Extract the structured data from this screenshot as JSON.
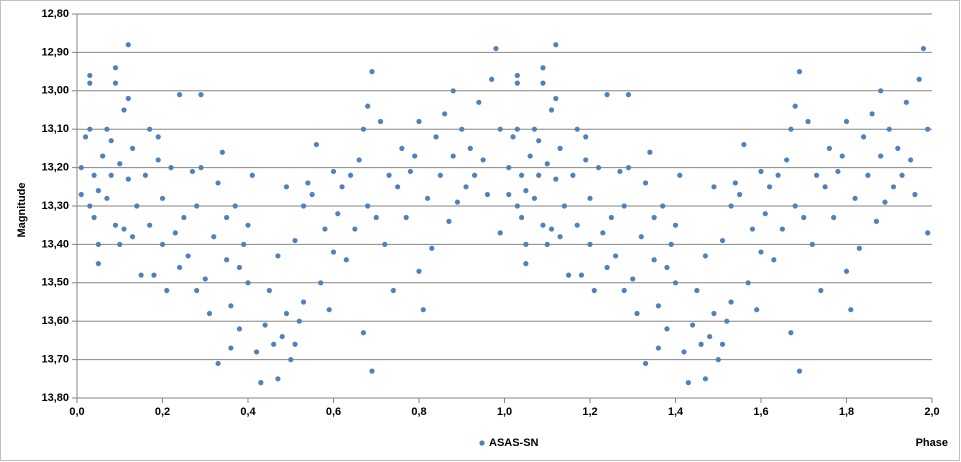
{
  "chart_data": {
    "type": "scatter",
    "xlabel": "Phase",
    "ylabel": "Magnitude",
    "x": [
      0.01,
      0.01,
      0.02,
      0.03,
      0.03,
      0.03,
      0.03,
      0.04,
      0.04,
      0.05,
      0.05,
      0.05,
      0.06,
      0.07,
      0.07,
      0.08,
      0.08,
      0.09,
      0.09,
      0.09,
      0.1,
      0.1,
      0.11,
      0.11,
      0.12,
      0.12,
      0.12,
      0.13,
      0.13,
      0.14,
      0.15,
      0.16,
      0.17,
      0.17,
      0.18,
      0.19,
      0.19,
      0.2,
      0.2,
      0.21,
      0.22,
      0.23,
      0.24,
      0.24,
      0.25,
      0.26,
      0.27,
      0.28,
      0.28,
      0.29,
      0.29,
      0.3,
      0.31,
      0.32,
      0.33,
      0.33,
      0.34,
      0.35,
      0.35,
      0.36,
      0.36,
      0.37,
      0.38,
      0.38,
      0.39,
      0.4,
      0.4,
      0.41,
      0.42,
      0.43,
      0.44,
      0.45,
      0.46,
      0.47,
      0.47,
      0.48,
      0.49,
      0.49,
      0.5,
      0.51,
      0.51,
      0.52,
      0.53,
      0.53,
      0.54,
      0.55,
      0.56,
      0.57,
      0.58,
      0.59,
      0.6,
      0.6,
      0.61,
      0.62,
      0.63,
      0.64,
      0.65,
      0.66,
      0.67,
      0.67,
      0.68,
      0.68,
      0.69,
      0.69,
      0.7,
      0.71,
      0.72,
      0.73,
      0.74,
      0.75,
      0.76,
      0.77,
      0.78,
      0.79,
      0.8,
      0.8,
      0.81,
      0.82,
      0.83,
      0.84,
      0.85,
      0.86,
      0.87,
      0.88,
      0.88,
      0.89,
      0.9,
      0.91,
      0.92,
      0.93,
      0.94,
      0.95,
      0.96,
      0.97,
      0.98,
      0.99,
      0.99,
      1.01,
      1.01,
      1.02,
      1.03,
      1.03,
      1.03,
      1.03,
      1.04,
      1.04,
      1.05,
      1.05,
      1.05,
      1.06,
      1.07,
      1.07,
      1.08,
      1.08,
      1.09,
      1.09,
      1.09,
      1.1,
      1.1,
      1.11,
      1.11,
      1.12,
      1.12,
      1.12,
      1.13,
      1.13,
      1.14,
      1.15,
      1.16,
      1.17,
      1.17,
      1.18,
      1.19,
      1.19,
      1.2,
      1.2,
      1.21,
      1.22,
      1.23,
      1.24,
      1.24,
      1.25,
      1.26,
      1.27,
      1.28,
      1.28,
      1.29,
      1.29,
      1.3,
      1.31,
      1.32,
      1.33,
      1.33,
      1.34,
      1.35,
      1.35,
      1.36,
      1.36,
      1.37,
      1.38,
      1.38,
      1.39,
      1.4,
      1.4,
      1.41,
      1.42,
      1.43,
      1.44,
      1.45,
      1.46,
      1.47,
      1.47,
      1.48,
      1.49,
      1.49,
      1.5,
      1.51,
      1.51,
      1.52,
      1.53,
      1.53,
      1.54,
      1.55,
      1.56,
      1.57,
      1.58,
      1.59,
      1.6,
      1.6,
      1.61,
      1.62,
      1.63,
      1.64,
      1.65,
      1.66,
      1.67,
      1.67,
      1.68,
      1.68,
      1.69,
      1.69,
      1.7,
      1.71,
      1.72,
      1.73,
      1.74,
      1.75,
      1.76,
      1.77,
      1.78,
      1.79,
      1.8,
      1.8,
      1.81,
      1.82,
      1.83,
      1.84,
      1.85,
      1.86,
      1.87,
      1.88,
      1.88,
      1.89,
      1.9,
      1.91,
      1.92,
      1.93,
      1.94,
      1.95,
      1.96,
      1.97,
      1.98,
      1.99,
      1.99
    ],
    "series": [
      {
        "name": "ASAS-SN",
        "color": "#4f81bd",
        "values": [
          13.2,
          13.27,
          13.12,
          12.96,
          12.98,
          13.1,
          13.3,
          13.33,
          13.22,
          13.4,
          13.45,
          13.26,
          13.17,
          13.1,
          13.28,
          13.22,
          13.13,
          12.94,
          12.98,
          13.35,
          13.19,
          13.4,
          13.36,
          13.05,
          12.88,
          13.02,
          13.23,
          13.15,
          13.38,
          13.3,
          13.48,
          13.22,
          13.1,
          13.35,
          13.48,
          13.18,
          13.12,
          13.4,
          13.28,
          13.52,
          13.2,
          13.37,
          13.01,
          13.46,
          13.33,
          13.43,
          13.21,
          13.3,
          13.52,
          13.01,
          13.2,
          13.49,
          13.58,
          13.38,
          13.71,
          13.24,
          13.16,
          13.44,
          13.33,
          13.56,
          13.67,
          13.3,
          13.62,
          13.46,
          13.4,
          13.5,
          13.35,
          13.22,
          13.68,
          13.76,
          13.61,
          13.52,
          13.66,
          13.43,
          13.75,
          13.64,
          13.25,
          13.58,
          13.7,
          13.39,
          13.66,
          13.6,
          13.3,
          13.55,
          13.24,
          13.27,
          13.14,
          13.5,
          13.36,
          13.57,
          13.21,
          13.42,
          13.32,
          13.25,
          13.44,
          13.22,
          13.36,
          13.18,
          13.1,
          13.63,
          13.3,
          13.04,
          12.95,
          13.73,
          13.33,
          13.08,
          13.4,
          13.22,
          13.52,
          13.25,
          13.15,
          13.33,
          13.21,
          13.17,
          13.47,
          13.08,
          13.57,
          13.28,
          13.41,
          13.12,
          13.22,
          13.06,
          13.34,
          13.0,
          13.17,
          13.29,
          13.1,
          13.25,
          13.15,
          13.22,
          13.03,
          13.18,
          13.27,
          12.97,
          12.89,
          13.1,
          13.37,
          13.2,
          13.27,
          13.12,
          12.96,
          12.98,
          13.1,
          13.3,
          13.33,
          13.22,
          13.4,
          13.45,
          13.26,
          13.17,
          13.1,
          13.28,
          13.22,
          13.13,
          12.94,
          12.98,
          13.35,
          13.19,
          13.4,
          13.36,
          13.05,
          12.88,
          13.02,
          13.23,
          13.15,
          13.38,
          13.3,
          13.48,
          13.22,
          13.1,
          13.35,
          13.48,
          13.18,
          13.12,
          13.4,
          13.28,
          13.52,
          13.2,
          13.37,
          13.01,
          13.46,
          13.33,
          13.43,
          13.21,
          13.3,
          13.52,
          13.01,
          13.2,
          13.49,
          13.58,
          13.38,
          13.71,
          13.24,
          13.16,
          13.44,
          13.33,
          13.56,
          13.67,
          13.3,
          13.62,
          13.46,
          13.4,
          13.5,
          13.35,
          13.22,
          13.68,
          13.76,
          13.61,
          13.52,
          13.66,
          13.43,
          13.75,
          13.64,
          13.25,
          13.58,
          13.7,
          13.39,
          13.66,
          13.6,
          13.3,
          13.55,
          13.24,
          13.27,
          13.14,
          13.5,
          13.36,
          13.57,
          13.21,
          13.42,
          13.32,
          13.25,
          13.44,
          13.22,
          13.36,
          13.18,
          13.1,
          13.63,
          13.3,
          13.04,
          12.95,
          13.73,
          13.33,
          13.08,
          13.4,
          13.22,
          13.52,
          13.25,
          13.15,
          13.33,
          13.21,
          13.17,
          13.47,
          13.08,
          13.57,
          13.28,
          13.41,
          13.12,
          13.22,
          13.06,
          13.34,
          13.0,
          13.17,
          13.29,
          13.1,
          13.25,
          13.15,
          13.22,
          13.03,
          13.18,
          13.27,
          12.97,
          12.89,
          13.1,
          13.37
        ]
      }
    ],
    "xlim": [
      0,
      2
    ],
    "xticks": [
      {
        "value": 0,
        "label": "0,0"
      },
      {
        "value": 0.2,
        "label": "0,2"
      },
      {
        "value": 0.4,
        "label": "0,4"
      },
      {
        "value": 0.6,
        "label": "0,6"
      },
      {
        "value": 0.8,
        "label": "0,8"
      },
      {
        "value": 1,
        "label": "1,0"
      },
      {
        "value": 1.2,
        "label": "1,2"
      },
      {
        "value": 1.4,
        "label": "1,4"
      },
      {
        "value": 1.6,
        "label": "1,6"
      },
      {
        "value": 1.8,
        "label": "1,8"
      },
      {
        "value": 2,
        "label": "2,0"
      }
    ],
    "ylim": [
      13.8,
      12.8
    ],
    "yticks": [
      {
        "value": 12.8,
        "label": "12,80"
      },
      {
        "value": 12.9,
        "label": "12,90"
      },
      {
        "value": 13.0,
        "label": "13,00"
      },
      {
        "value": 13.1,
        "label": "13,10"
      },
      {
        "value": 13.2,
        "label": "13,20"
      },
      {
        "value": 13.3,
        "label": "13,30"
      },
      {
        "value": 13.4,
        "label": "13,40"
      },
      {
        "value": 13.5,
        "label": "13,50"
      },
      {
        "value": 13.6,
        "label": "13,60"
      },
      {
        "value": 13.7,
        "label": "13,70"
      },
      {
        "value": 13.8,
        "label": "13,80"
      }
    ],
    "grid": true,
    "legend": "bottom"
  }
}
